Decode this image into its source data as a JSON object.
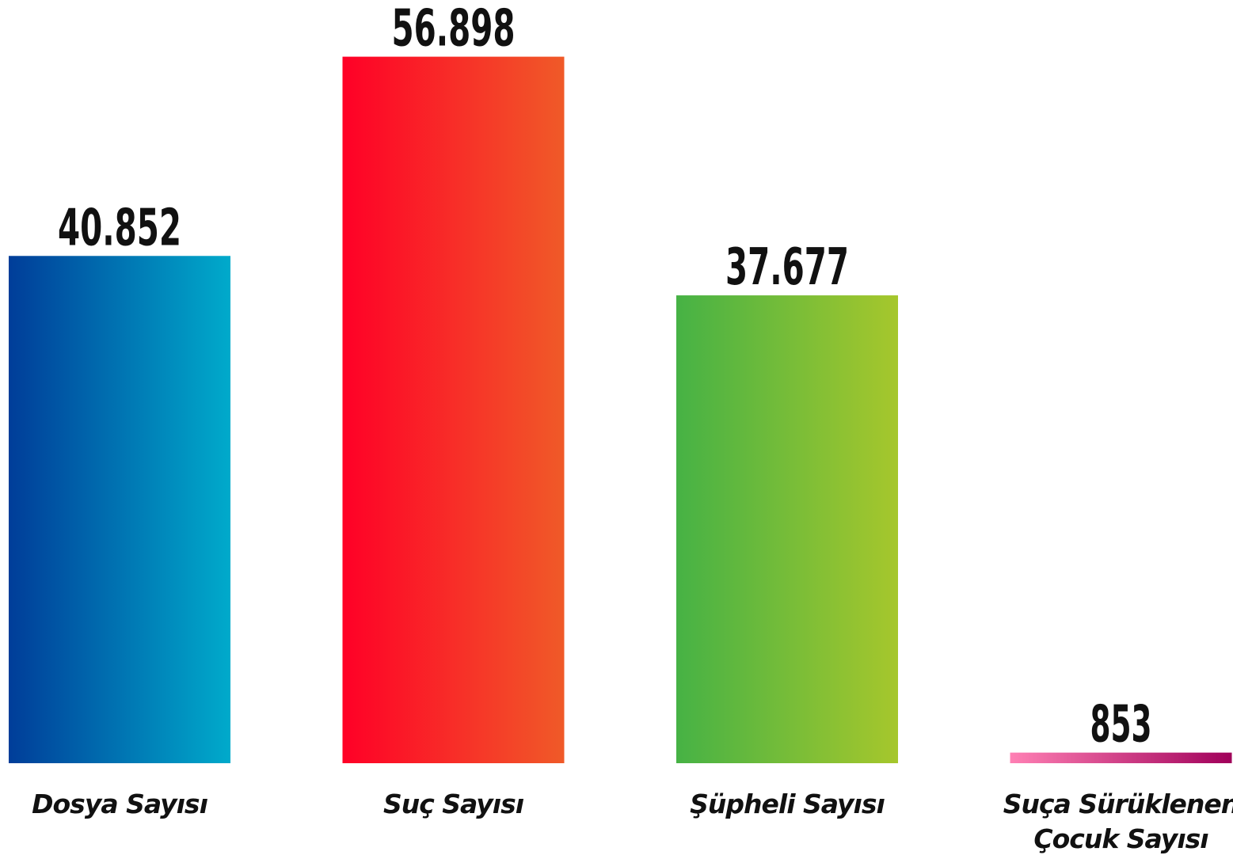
{
  "chart_data": {
    "type": "bar",
    "categories": [
      "Dosya Sayısı",
      "Suç Sayısı",
      "Şüpheli Sayısı",
      "Suça Sürüklenen Çocuk Sayısı"
    ],
    "values": [
      40852,
      56898,
      37677,
      853
    ],
    "value_labels": [
      "40.852",
      "56.898",
      "37.677",
      "853"
    ],
    "colors": [
      [
        "#003d99",
        "#00aacb"
      ],
      [
        "#ff0027",
        "#f05a28"
      ],
      [
        "#46b245",
        "#a6c72c"
      ],
      [
        "#ff80b4",
        "#a0005a"
      ]
    ],
    "ylim": [
      0,
      57000
    ]
  }
}
